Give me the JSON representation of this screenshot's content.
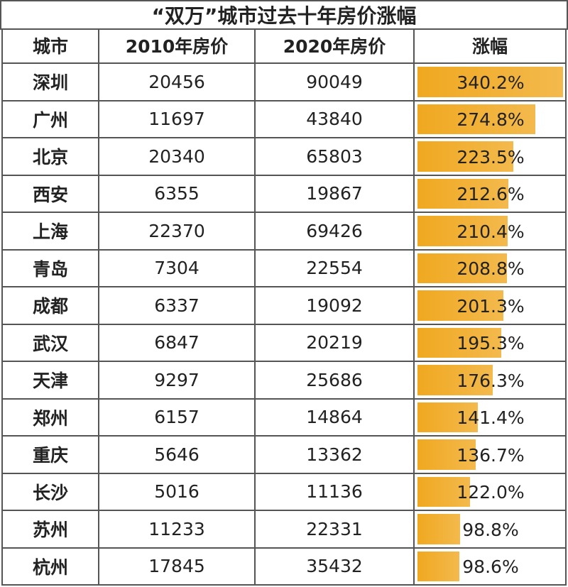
{
  "title": "“双万”城市过去十年房价涨幅",
  "table": {
    "headers": [
      "城市",
      "2010年房价",
      "2020年房价",
      "涨幅"
    ],
    "rows": [
      [
        "深圳",
        20456,
        90049
      ],
      [
        "广州",
        11697,
        43840
      ],
      [
        "北京",
        20340,
        65803
      ],
      [
        "西安",
        6355,
        19867
      ],
      [
        "上海",
        22370,
        69426
      ],
      [
        "青岛",
        7304,
        22554
      ],
      [
        "成都",
        6337,
        19092
      ],
      [
        "武汉",
        6847,
        20219
      ],
      [
        "天津",
        9297,
        25686
      ],
      [
        "郑州",
        6157,
        14864
      ],
      [
        "重庆",
        5646,
        13362
      ],
      [
        "长沙",
        5016,
        11136
      ],
      [
        "苏州",
        11233,
        22331
      ],
      [
        "杭州",
        17845,
        35432
      ]
    ],
    "growth": {
      "values": [
        340.2,
        274.8,
        223.5,
        212.6,
        210.4,
        208.8,
        201.3,
        195.3,
        176.3,
        141.4,
        136.7,
        122.0,
        98.8,
        98.6
      ],
      "value_labels": [
        "340.2%",
        "274.8%",
        "223.5%",
        "212.6%",
        "210.4%",
        "208.8%",
        "201.3%",
        "195.3%",
        "176.3%",
        "141.4%",
        "136.7%",
        "122.0%",
        "98.8%",
        "98.6%"
      ],
      "color": "#f0a820"
    }
  }
}
